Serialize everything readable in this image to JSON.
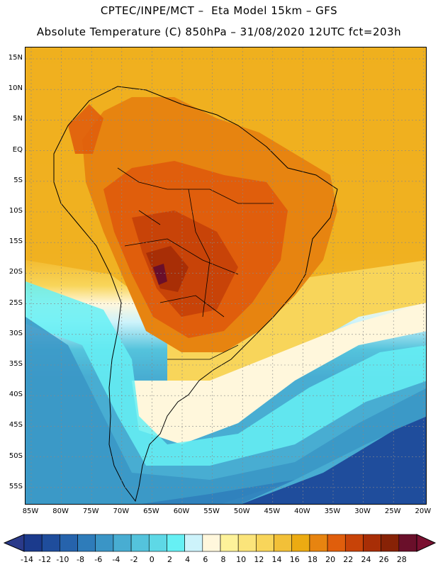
{
  "header": {
    "line1": "CPTEC/INPE/MCT –  Eta Model 15km – GFS",
    "line2": "Absolute Temperature (C) 850hPa – 31/08/2020 12UTC fct=203h"
  },
  "map": {
    "lat_labels": [
      "15N",
      "10N",
      "5N",
      "EQ",
      "5S",
      "10S",
      "15S",
      "20S",
      "25S",
      "30S",
      "35S",
      "40S",
      "45S",
      "50S",
      "55S"
    ],
    "lon_labels": [
      "85W",
      "80W",
      "75W",
      "70W",
      "65W",
      "60W",
      "55W",
      "50W",
      "45W",
      "40W",
      "35W",
      "30W",
      "25W",
      "20W"
    ],
    "lat_range": [
      15,
      -55
    ],
    "lon_range": [
      -85,
      -20
    ]
  },
  "colorbar": {
    "labels": [
      "-14",
      "-12",
      "-10",
      "-8",
      "-6",
      "-4",
      "-2",
      "0",
      "2",
      "4",
      "6",
      "8",
      "10",
      "12",
      "14",
      "16",
      "18",
      "20",
      "22",
      "24",
      "26",
      "28"
    ],
    "colors": [
      "#1b3a8c",
      "#1f4d9c",
      "#2663ac",
      "#2e7cba",
      "#3a95c6",
      "#48add2",
      "#54c3dc",
      "#5ed8e6",
      "#66f0f4",
      "#cdf3fb",
      "#fff7dc",
      "#fdf29a",
      "#fbe47a",
      "#f8d55a",
      "#f2c038",
      "#ecab12",
      "#e78410",
      "#e05e0c",
      "#c84308",
      "#a82e06",
      "#872206",
      "#6a0f2a"
    ],
    "low_color": "#2a3a8a",
    "high_color": "#7a1030"
  }
}
